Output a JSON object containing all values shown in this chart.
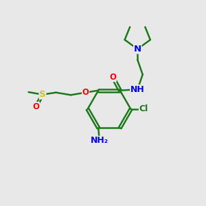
{
  "bg_color": "#e8e8e8",
  "bond_color": "#1a7a1a",
  "bond_width": 1.8,
  "atom_colors": {
    "N": "#0000EE",
    "O": "#FF0000",
    "S": "#CCCC00",
    "Cl": "#1a7a1a",
    "NH2": "#0000EE",
    "NH": "#0000EE"
  },
  "font_size": 8.5
}
